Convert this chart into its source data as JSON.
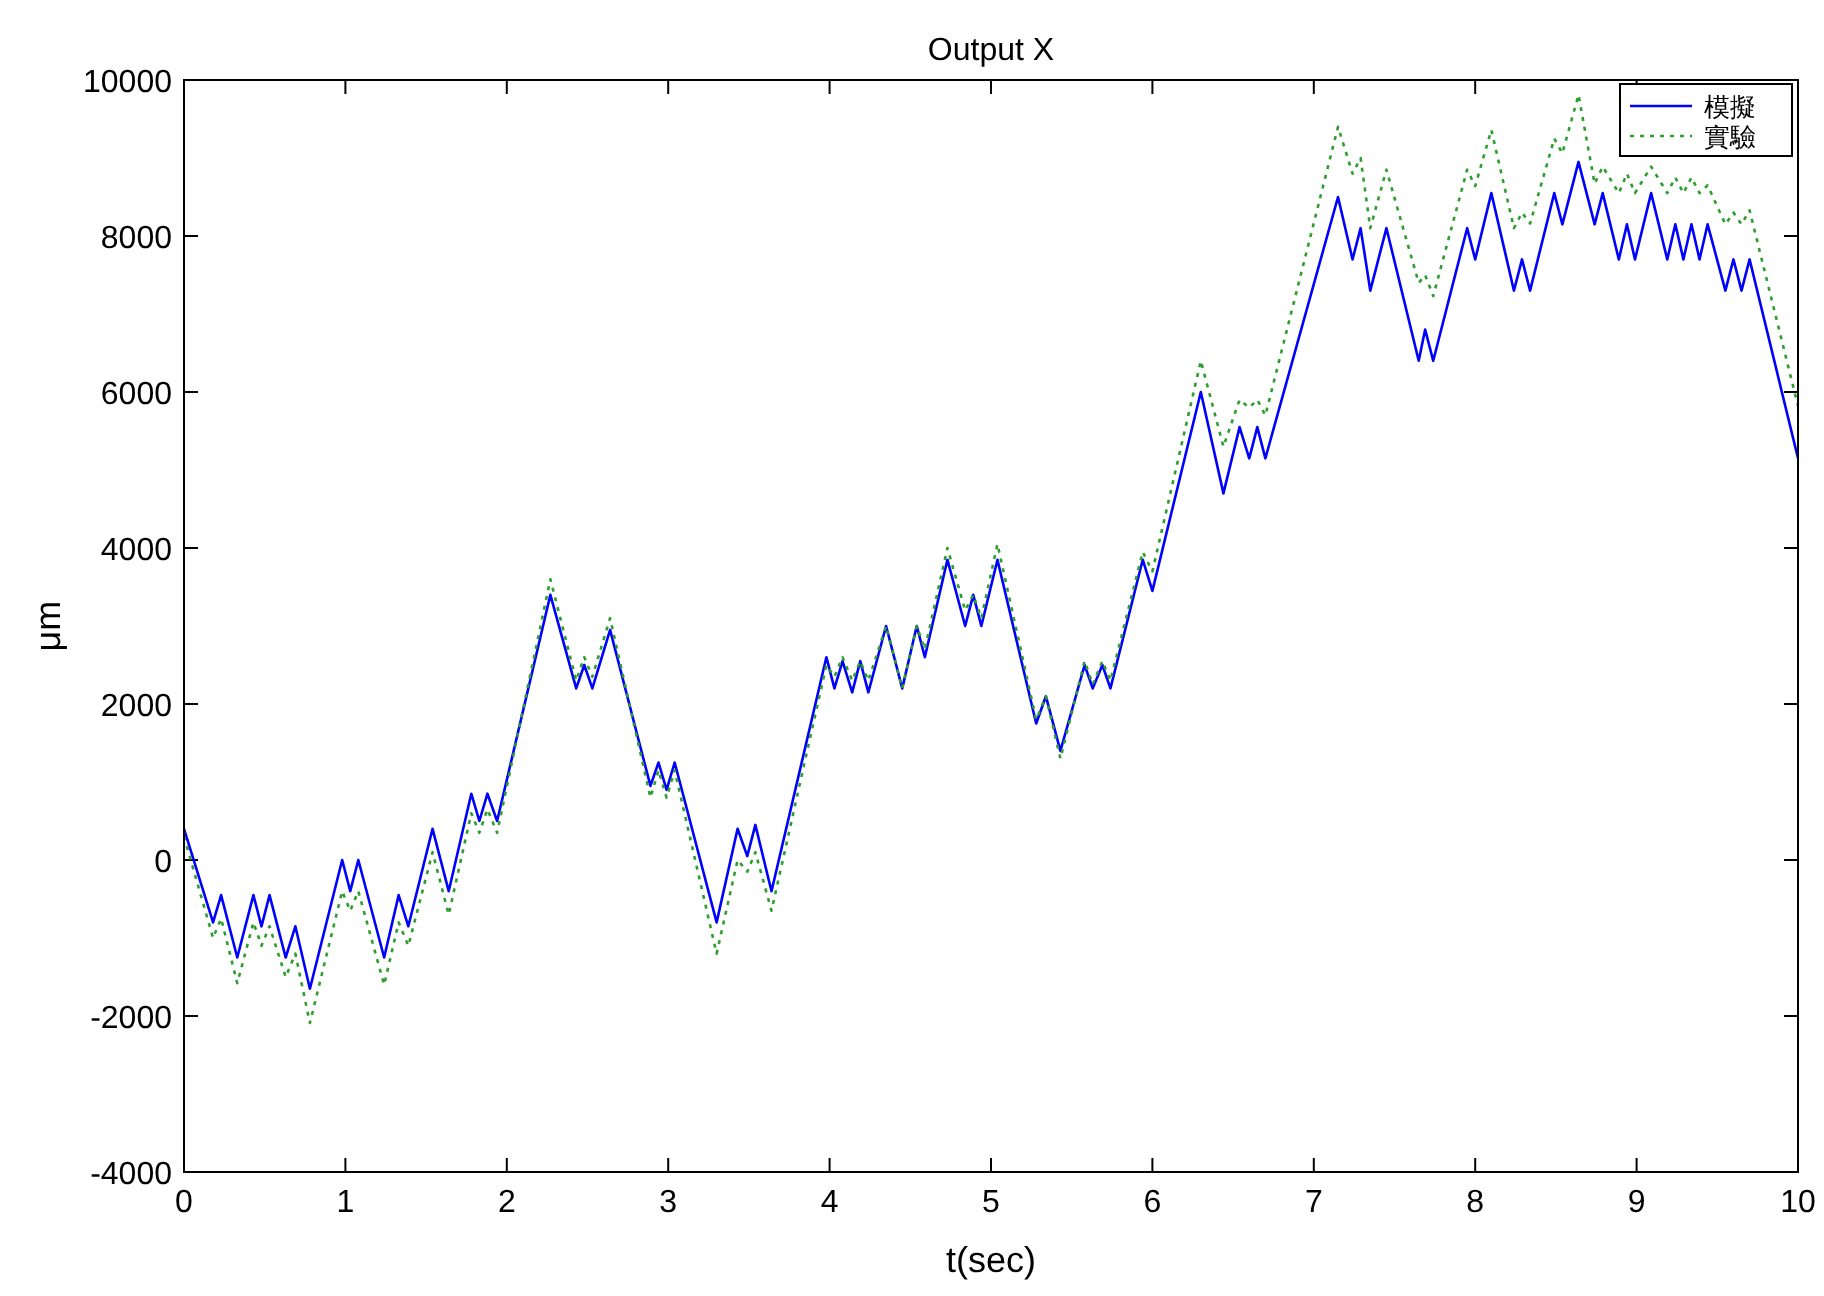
{
  "chart_data": {
    "type": "line",
    "title": "Output X",
    "xlabel": "t(sec)",
    "ylabel": "μm",
    "xlim": [
      0,
      10
    ],
    "ylim": [
      -4000,
      10000
    ],
    "xticks": [
      0,
      1,
      2,
      3,
      4,
      5,
      6,
      7,
      8,
      9,
      10
    ],
    "yticks": [
      -4000,
      -2000,
      0,
      2000,
      4000,
      6000,
      8000,
      10000
    ],
    "grid": false,
    "legend": "top right",
    "marker": "none",
    "x": [
      0,
      0.18,
      0.23,
      0.33,
      0.43,
      0.48,
      0.53,
      0.63,
      0.69,
      0.78,
      0.98,
      1.03,
      1.08,
      1.24,
      1.33,
      1.39,
      1.54,
      1.64,
      1.78,
      1.83,
      1.88,
      1.94,
      2.27,
      2.43,
      2.48,
      2.53,
      2.64,
      2.89,
      2.94,
      2.99,
      3.04,
      3.3,
      3.43,
      3.49,
      3.54,
      3.64,
      3.98,
      4.03,
      4.08,
      4.14,
      4.19,
      4.24,
      4.35,
      4.45,
      4.54,
      4.59,
      4.73,
      4.84,
      4.89,
      4.94,
      5.04,
      5.28,
      5.34,
      5.43,
      5.58,
      5.63,
      5.69,
      5.74,
      5.94,
      6.0,
      6.3,
      6.44,
      6.54,
      6.6,
      6.65,
      6.7,
      7.15,
      7.24,
      7.29,
      7.35,
      7.45,
      7.65,
      7.69,
      7.74,
      7.95,
      8.0,
      8.1,
      8.24,
      8.29,
      8.34,
      8.49,
      8.54,
      8.64,
      8.74,
      8.79,
      8.89,
      8.94,
      8.99,
      9.09,
      9.19,
      9.24,
      9.29,
      9.34,
      9.39,
      9.44,
      9.55,
      9.6,
      9.65,
      9.7,
      10
    ],
    "series": [
      {
        "name": "模擬",
        "color": "#0000ff",
        "line_style": "solid",
        "values": [
          400,
          -800,
          -450,
          -1250,
          -450,
          -850,
          -450,
          -1250,
          -850,
          -1650,
          0,
          -400,
          0,
          -1250,
          -450,
          -850,
          400,
          -400,
          850,
          500,
          850,
          500,
          3400,
          2200,
          2500,
          2200,
          2950,
          950,
          1250,
          900,
          1250,
          -800,
          400,
          50,
          450,
          -400,
          2600,
          2200,
          2550,
          2150,
          2550,
          2150,
          3000,
          2200,
          3000,
          2600,
          3850,
          3000,
          3400,
          3000,
          3850,
          1750,
          2100,
          1400,
          2500,
          2200,
          2500,
          2200,
          3850,
          3450,
          6000,
          4700,
          5550,
          5150,
          5550,
          5150,
          8500,
          7700,
          8100,
          7300,
          8100,
          6400,
          6800,
          6400,
          8100,
          7700,
          8550,
          7300,
          7700,
          7300,
          8550,
          8150,
          8950,
          8150,
          8550,
          7700,
          8150,
          7700,
          8550,
          7700,
          8150,
          7700,
          8150,
          7700,
          8150,
          7300,
          7700,
          7300,
          7700,
          5150
        ]
      },
      {
        "name": "實驗",
        "color": "#2e9e2e",
        "line_style": "dotted",
        "values": [
          300,
          -1000,
          -750,
          -1580,
          -800,
          -1100,
          -850,
          -1500,
          -1200,
          -2090,
          -400,
          -650,
          -400,
          -1600,
          -800,
          -1100,
          100,
          -700,
          600,
          350,
          650,
          350,
          3600,
          2300,
          2600,
          2350,
          3100,
          800,
          1150,
          800,
          1150,
          -1200,
          0,
          -150,
          100,
          -650,
          2500,
          2350,
          2600,
          2300,
          2550,
          2300,
          3000,
          2200,
          3000,
          2700,
          4000,
          3200,
          3400,
          3100,
          4050,
          1800,
          2100,
          1300,
          2550,
          2250,
          2550,
          2300,
          3950,
          3700,
          6400,
          5300,
          5900,
          5800,
          5900,
          5700,
          9400,
          8800,
          9000,
          8100,
          8850,
          7400,
          7500,
          7230,
          8850,
          8640,
          9360,
          8100,
          8300,
          8160,
          9250,
          9060,
          9810,
          8670,
          8890,
          8550,
          8800,
          8550,
          8890,
          8550,
          8750,
          8550,
          8750,
          8550,
          8650,
          8150,
          8300,
          8150,
          8330,
          5820
        ]
      }
    ]
  }
}
